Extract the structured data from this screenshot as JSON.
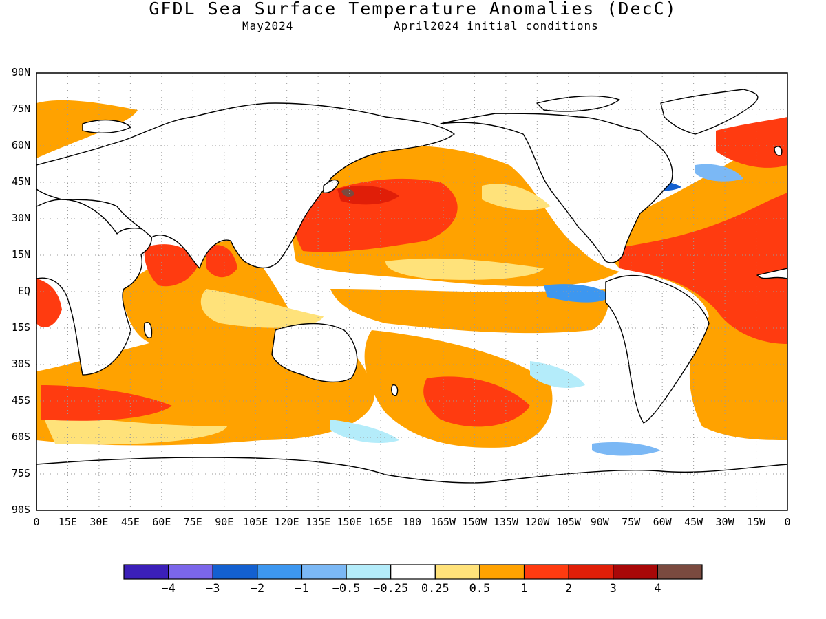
{
  "title": "GFDL Sea Surface Temperature Anomalies (DecC)",
  "subtitle_left": "May2024",
  "subtitle_right": "April2024 initial conditions",
  "lat_labels": [
    "90N",
    "75N",
    "60N",
    "45N",
    "30N",
    "15N",
    "EQ",
    "15S",
    "30S",
    "45S",
    "60S",
    "75S",
    "90S"
  ],
  "lon_labels": [
    "0",
    "15E",
    "30E",
    "45E",
    "60E",
    "75E",
    "90E",
    "105E",
    "120E",
    "135E",
    "150E",
    "165E",
    "180",
    "165W",
    "150W",
    "135W",
    "120W",
    "105W",
    "90W",
    "75W",
    "60W",
    "45W",
    "30W",
    "15W",
    "0"
  ],
  "colorbar": {
    "colors": [
      "#3b1fb8",
      "#7b66ea",
      "#1360d0",
      "#3d97f0",
      "#7bb8f5",
      "#b4ecfa",
      "#ffffff",
      "#ffe27a",
      "#ffa200",
      "#ff3b10",
      "#e01e08",
      "#a80808",
      "#7a4a3f"
    ],
    "labels": [
      "-4",
      "-3",
      "-2",
      "-1",
      "-0.5",
      "-0.25",
      "0.25",
      "0.5",
      "1",
      "2",
      "3",
      "4"
    ]
  }
}
